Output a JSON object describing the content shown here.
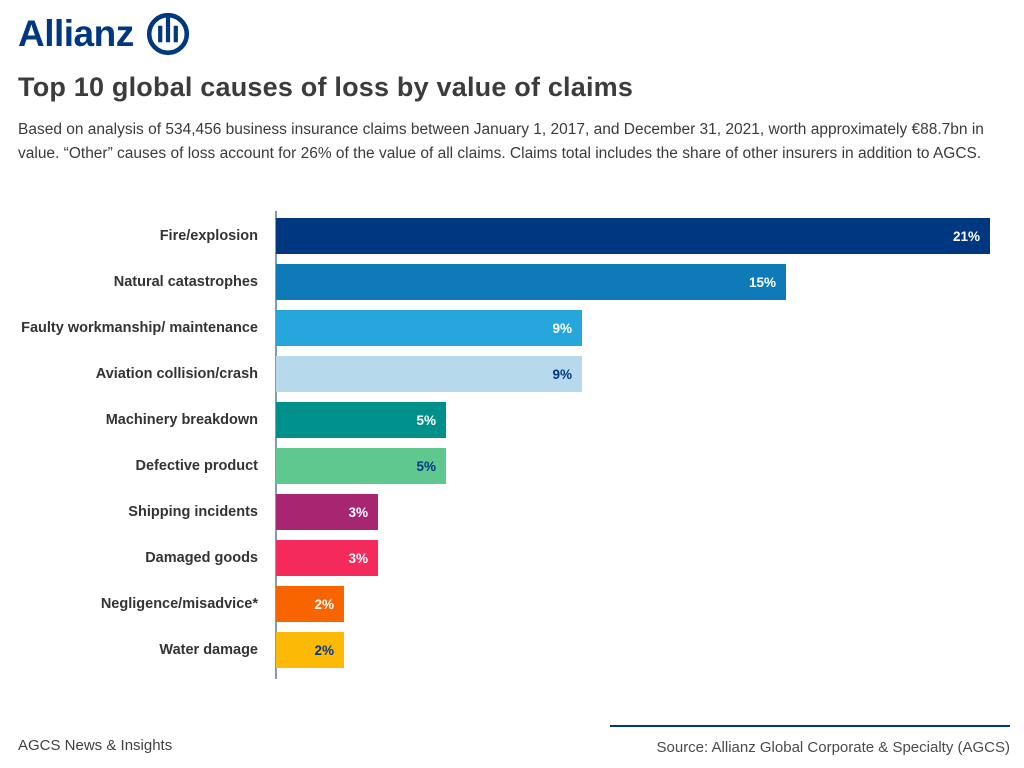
{
  "brand": {
    "logo_text": "Allianz",
    "brand_color": "#003781"
  },
  "header": {
    "title": "Top 10 global causes of loss by value of claims",
    "subtitle": "Based on analysis of 534,456 business insurance claims between January 1, 2017, and December 31, 2021, worth approximately €88.7bn in value. “Other” causes of loss account for 26% of the value of all claims. Claims total includes the share of other insurers in addition to AGCS."
  },
  "chart_data": {
    "type": "bar",
    "orientation": "horizontal",
    "title": "Top 10 global causes of loss by value of claims",
    "categories": [
      "Fire/explosion",
      "Natural catastrophes",
      "Faulty workmanship/ maintenance",
      "Aviation collision/crash",
      "Machinery breakdown",
      "Defective product",
      "Shipping incidents",
      "Damaged goods",
      "Negligence/misadvice*",
      "Water damage"
    ],
    "values": [
      21,
      15,
      9,
      9,
      5,
      5,
      3,
      3,
      2,
      2
    ],
    "value_labels": [
      "21%",
      "15%",
      "9%",
      "9%",
      "5%",
      "5%",
      "3%",
      "3%",
      "2%",
      "2%"
    ],
    "bar_colors": [
      "#003781",
      "#0e7bb8",
      "#27a6de",
      "#b6d9ec",
      "#00908c",
      "#5ec88f",
      "#a62672",
      "#f4295c",
      "#f76400",
      "#fcba06"
    ],
    "value_label_colors": [
      "#ffffff",
      "#ffffff",
      "#ffffff",
      "#003781",
      "#ffffff",
      "#003781",
      "#ffffff",
      "#ffffff",
      "#ffffff",
      "#003781"
    ],
    "xlim": [
      0,
      22
    ],
    "unit": "%",
    "grid": false,
    "legend": false
  },
  "footer": {
    "left_text": "AGCS News & Insights",
    "source_text": "Source: Allianz Global Corporate & Specialty (AGCS)"
  }
}
